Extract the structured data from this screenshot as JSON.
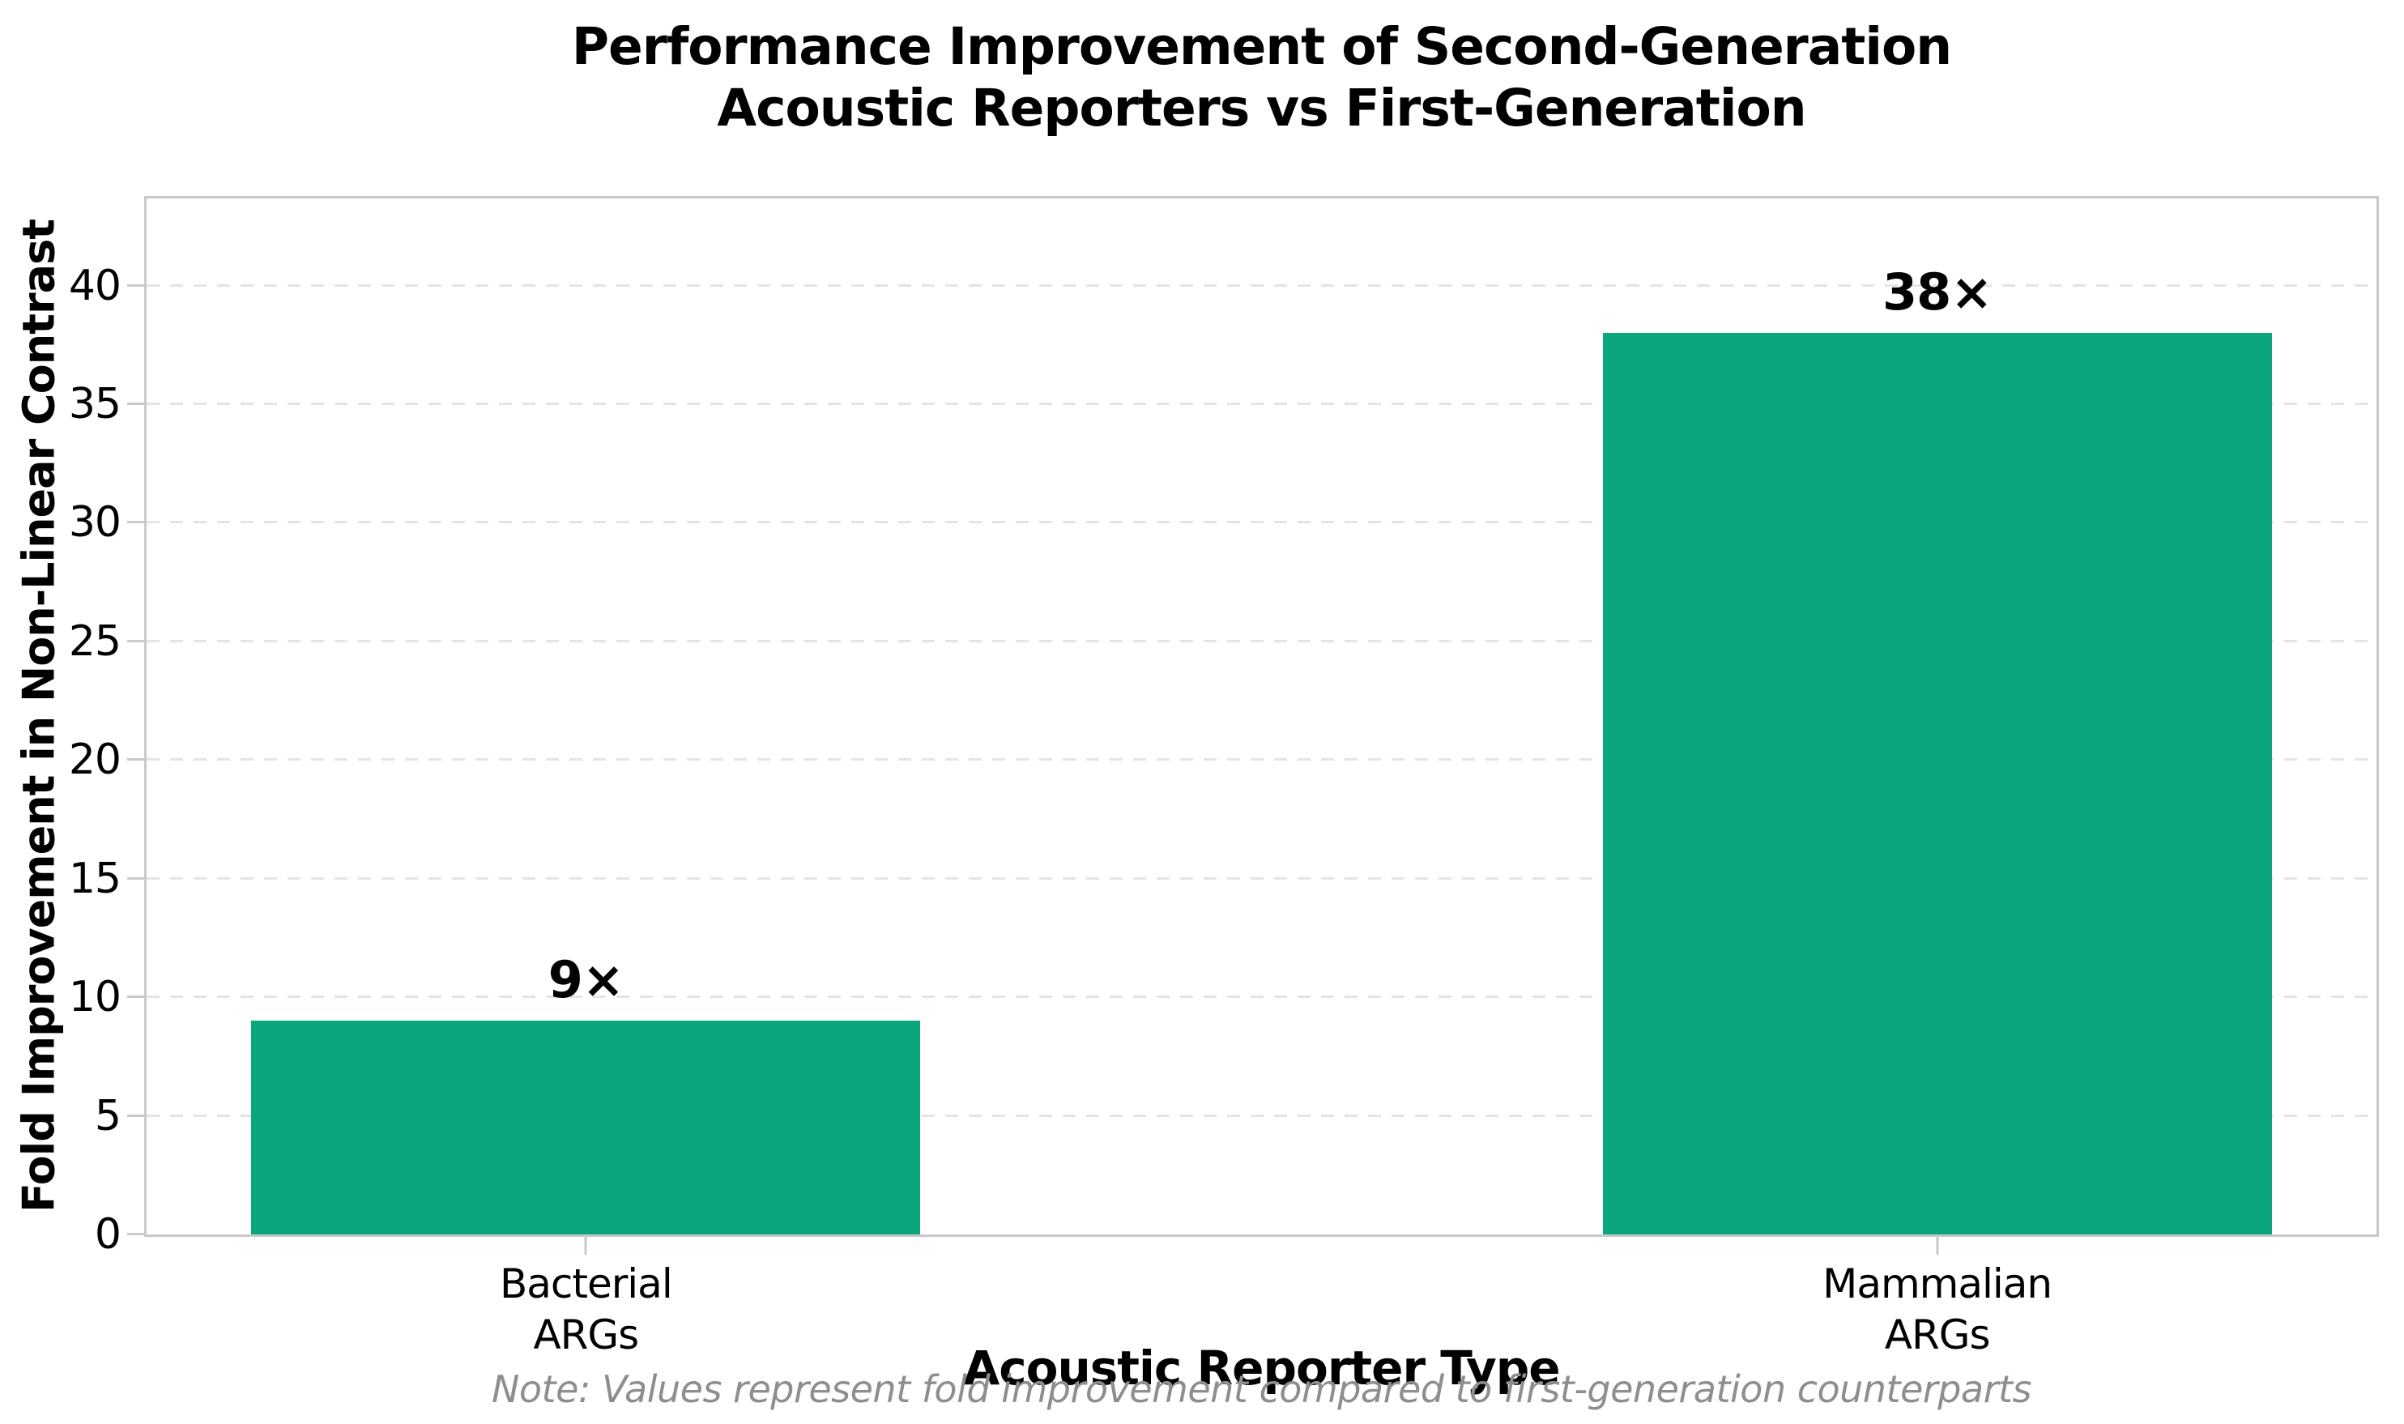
{
  "chart_data": {
    "type": "bar",
    "title_lines": [
      "Performance Improvement of Second-Generation",
      "Acoustic Reporters vs First-Generation"
    ],
    "categories": [
      [
        "Bacterial",
        "ARGs"
      ],
      [
        "Mammalian",
        "ARGs"
      ]
    ],
    "values": [
      9,
      38
    ],
    "bar_value_labels": [
      "9×",
      "38×"
    ],
    "xlabel": "Acoustic Reporter Type",
    "ylabel": "Fold Improvement in Non-Linear Contrast",
    "yticks": [
      0,
      5,
      10,
      15,
      20,
      25,
      30,
      35,
      40
    ],
    "ylim": [
      0,
      43.67
    ],
    "note": "Note: Values represent fold improvement compared to first-generation counterparts",
    "colors": {
      "bar": "#0ba67d",
      "grid": "#e4e4e4",
      "spine": "#c9c9c9",
      "text": "#000000",
      "note_text": "#8e8e8e"
    },
    "layout": {
      "grid": "horizontal-dashed",
      "legend": "none",
      "bar_centers_frac": [
        0.197,
        0.803
      ],
      "bar_width_frac": 0.3
    }
  }
}
